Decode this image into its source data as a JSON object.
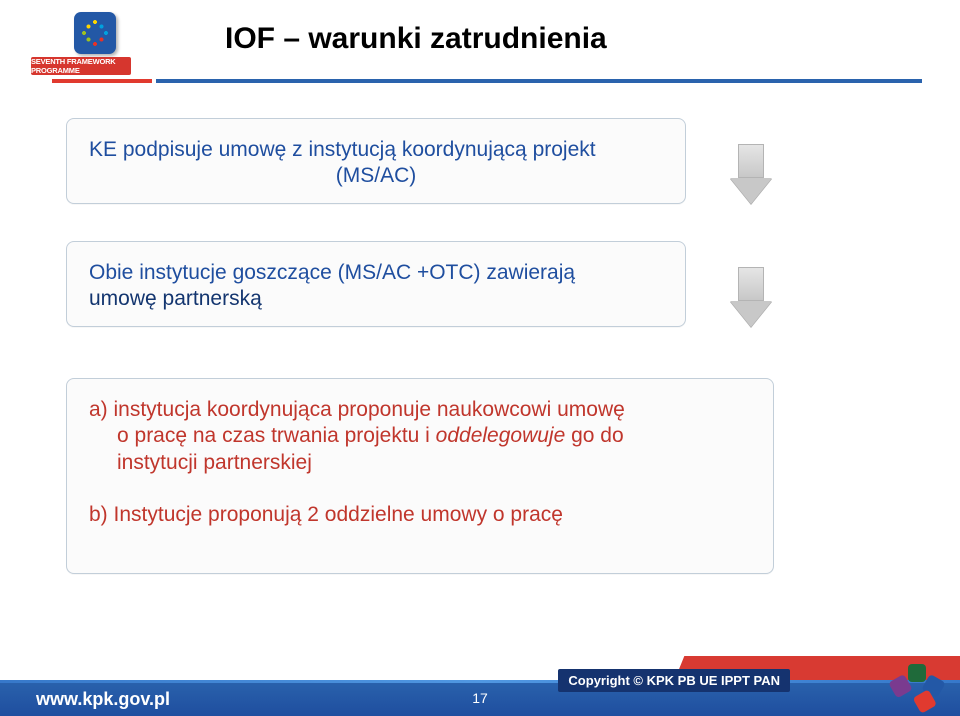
{
  "colors": {
    "title": "#1a1a1a",
    "blue": "#1f4e9f",
    "navy": "#13356f",
    "red_text": "#c0362c",
    "rule_red": "#e13a2f",
    "rule_blue": "#2a63ad",
    "box_border": "#c2ced9",
    "box_bg": "#fbfbfb",
    "footer_bar_top": "#2a63ad",
    "footer_bar_bottom": "#1f4e9f",
    "flag_red": "#d83a32",
    "copyright_bg": "#15336f"
  },
  "fonts": {
    "family": "Arial",
    "title_size_pt": 22,
    "body_size_pt": 16,
    "footer_url_size_pt": 14,
    "copyright_size_pt": 10
  },
  "logo": {
    "program_label": "SEVENTH FRAMEWORK PROGRAMME"
  },
  "title": "IOF – warunki zatrudnienia",
  "box1": {
    "l1": "KE podpisuje umowę z instytucją koordynującą projekt",
    "l2": "(MS/AC)"
  },
  "box2": {
    "l1": "Obie instytucje goszczące (MS/AC +OTC) zawierają",
    "l2_navy": "umowę partnerską"
  },
  "box3": {
    "a_l1": "a) instytucja koordynująca proponuje naukowcowi umowę",
    "a_l2_head": "o pracę",
    "a_l2_rest": " na czas trwania projektu i ",
    "a_l2_ital": "oddelegowuje",
    "a_l2_tail": " go do",
    "a_l3": "instytucji partnerskiej",
    "b": "b) Instytucje proponują 2 oddzielne umowy o pracę"
  },
  "footer": {
    "url": "www.kpk.gov.pl",
    "page_center": "17",
    "copyright": "Copyright © KPK PB UE IPPT PAN"
  },
  "page_outside": "17"
}
